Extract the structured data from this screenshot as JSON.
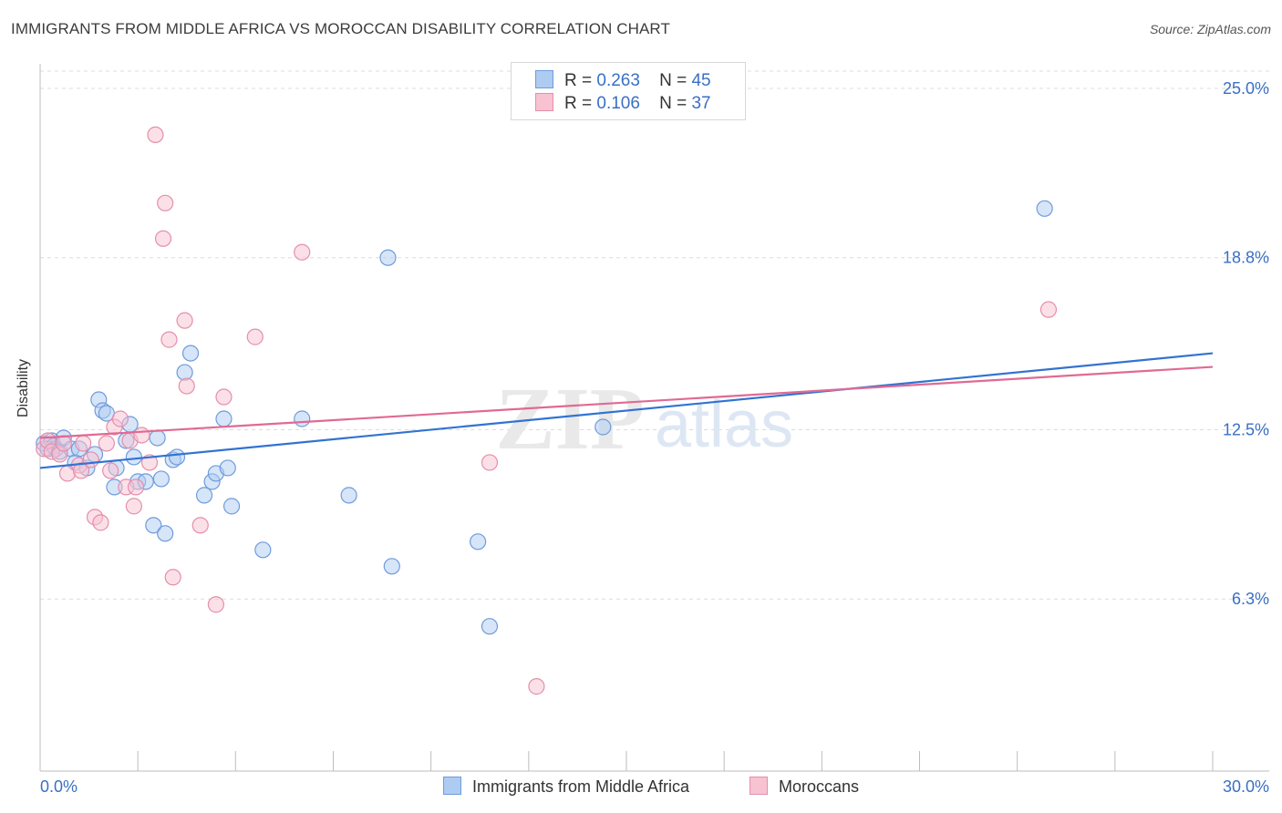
{
  "header": {
    "title": "IMMIGRANTS FROM MIDDLE AFRICA VS MOROCCAN DISABILITY CORRELATION CHART",
    "source": "Source: ZipAtlas.com"
  },
  "legend": {
    "r_label": "R =",
    "n_label": "N =",
    "rows": [
      {
        "r": "0.263",
        "n": "45",
        "color": "#aecbf2",
        "border": "#6f9bdc"
      },
      {
        "r": "0.106",
        "n": "37",
        "color": "#f7c2d2",
        "border": "#e58fab"
      }
    ]
  },
  "watermark": {
    "zip": "ZIP",
    "atlas": "atlas"
  },
  "chart_data": {
    "type": "scatter",
    "title": "IMMIGRANTS FROM MIDDLE AFRICA VS MOROCCAN DISABILITY CORRELATION CHART",
    "xlabel": "",
    "ylabel": "Disability",
    "xlim": [
      0,
      30
    ],
    "ylim": [
      0,
      25.9
    ],
    "x_tick_labels": [
      "0.0%",
      "30.0%"
    ],
    "y_ticks": [
      6.3,
      12.5,
      18.8,
      25.0
    ],
    "y_tick_labels": [
      "6.3%",
      "12.5%",
      "18.8%",
      "25.0%"
    ],
    "grid": true,
    "series": [
      {
        "name": "Immigrants from Middle Africa",
        "color": "#6f9bdc",
        "fill": "#aecbf2",
        "line_color": "#3273d1",
        "trend": {
          "x": [
            0,
            30
          ],
          "y": [
            11.1,
            15.3
          ]
        },
        "points": [
          [
            0.1,
            12.0
          ],
          [
            0.2,
            11.8
          ],
          [
            0.3,
            12.1
          ],
          [
            0.35,
            11.9
          ],
          [
            0.4,
            11.8
          ],
          [
            0.5,
            11.7
          ],
          [
            0.6,
            12.2
          ],
          [
            0.8,
            11.8
          ],
          [
            0.9,
            11.3
          ],
          [
            1.0,
            11.8
          ],
          [
            1.2,
            11.1
          ],
          [
            1.4,
            11.6
          ],
          [
            1.5,
            13.6
          ],
          [
            1.6,
            13.2
          ],
          [
            1.7,
            13.1
          ],
          [
            1.9,
            10.4
          ],
          [
            1.95,
            11.1
          ],
          [
            2.2,
            12.1
          ],
          [
            2.3,
            12.7
          ],
          [
            2.4,
            11.5
          ],
          [
            2.5,
            10.6
          ],
          [
            2.7,
            10.6
          ],
          [
            2.9,
            9.0
          ],
          [
            3.0,
            12.2
          ],
          [
            3.1,
            10.7
          ],
          [
            3.2,
            8.7
          ],
          [
            3.4,
            11.4
          ],
          [
            3.5,
            11.5
          ],
          [
            3.7,
            14.6
          ],
          [
            3.85,
            15.3
          ],
          [
            4.2,
            10.1
          ],
          [
            4.4,
            10.6
          ],
          [
            4.5,
            10.9
          ],
          [
            4.7,
            12.9
          ],
          [
            4.8,
            11.1
          ],
          [
            4.9,
            9.7
          ],
          [
            5.7,
            8.1
          ],
          [
            6.7,
            12.9
          ],
          [
            7.9,
            10.1
          ],
          [
            8.9,
            18.8
          ],
          [
            9.0,
            7.5
          ],
          [
            11.2,
            8.4
          ],
          [
            11.5,
            5.3
          ],
          [
            14.4,
            12.6
          ],
          [
            25.7,
            20.6
          ]
        ]
      },
      {
        "name": "Moroccans",
        "color": "#e58fab",
        "fill": "#f7c2d2",
        "line_color": "#e06a93",
        "trend": {
          "x": [
            0,
            30
          ],
          "y": [
            12.2,
            14.8
          ]
        },
        "points": [
          [
            0.1,
            11.8
          ],
          [
            0.2,
            12.1
          ],
          [
            0.3,
            11.7
          ],
          [
            0.5,
            11.6
          ],
          [
            0.6,
            12.0
          ],
          [
            0.7,
            10.9
          ],
          [
            1.0,
            11.2
          ],
          [
            1.05,
            11.0
          ],
          [
            1.1,
            12.0
          ],
          [
            1.3,
            11.4
          ],
          [
            1.4,
            9.3
          ],
          [
            1.55,
            9.1
          ],
          [
            1.7,
            12.0
          ],
          [
            1.8,
            11.0
          ],
          [
            1.9,
            12.6
          ],
          [
            2.05,
            12.9
          ],
          [
            2.2,
            10.4
          ],
          [
            2.3,
            12.1
          ],
          [
            2.4,
            9.7
          ],
          [
            2.45,
            10.4
          ],
          [
            2.6,
            12.3
          ],
          [
            2.8,
            11.3
          ],
          [
            2.95,
            23.3
          ],
          [
            3.15,
            19.5
          ],
          [
            3.2,
            20.8
          ],
          [
            3.3,
            15.8
          ],
          [
            3.4,
            7.1
          ],
          [
            3.7,
            16.5
          ],
          [
            3.75,
            14.1
          ],
          [
            4.1,
            9.0
          ],
          [
            4.5,
            6.1
          ],
          [
            4.7,
            13.7
          ],
          [
            5.5,
            15.9
          ],
          [
            6.7,
            19.0
          ],
          [
            11.5,
            11.3
          ],
          [
            12.7,
            3.1
          ],
          [
            25.8,
            16.9
          ]
        ]
      }
    ]
  },
  "bottom_legend": {
    "items": [
      {
        "label": "Immigrants from Middle Africa",
        "color": "#aecbf2",
        "border": "#6f9bdc"
      },
      {
        "label": "Moroccans",
        "color": "#f7c2d2",
        "border": "#e58fab"
      }
    ]
  }
}
